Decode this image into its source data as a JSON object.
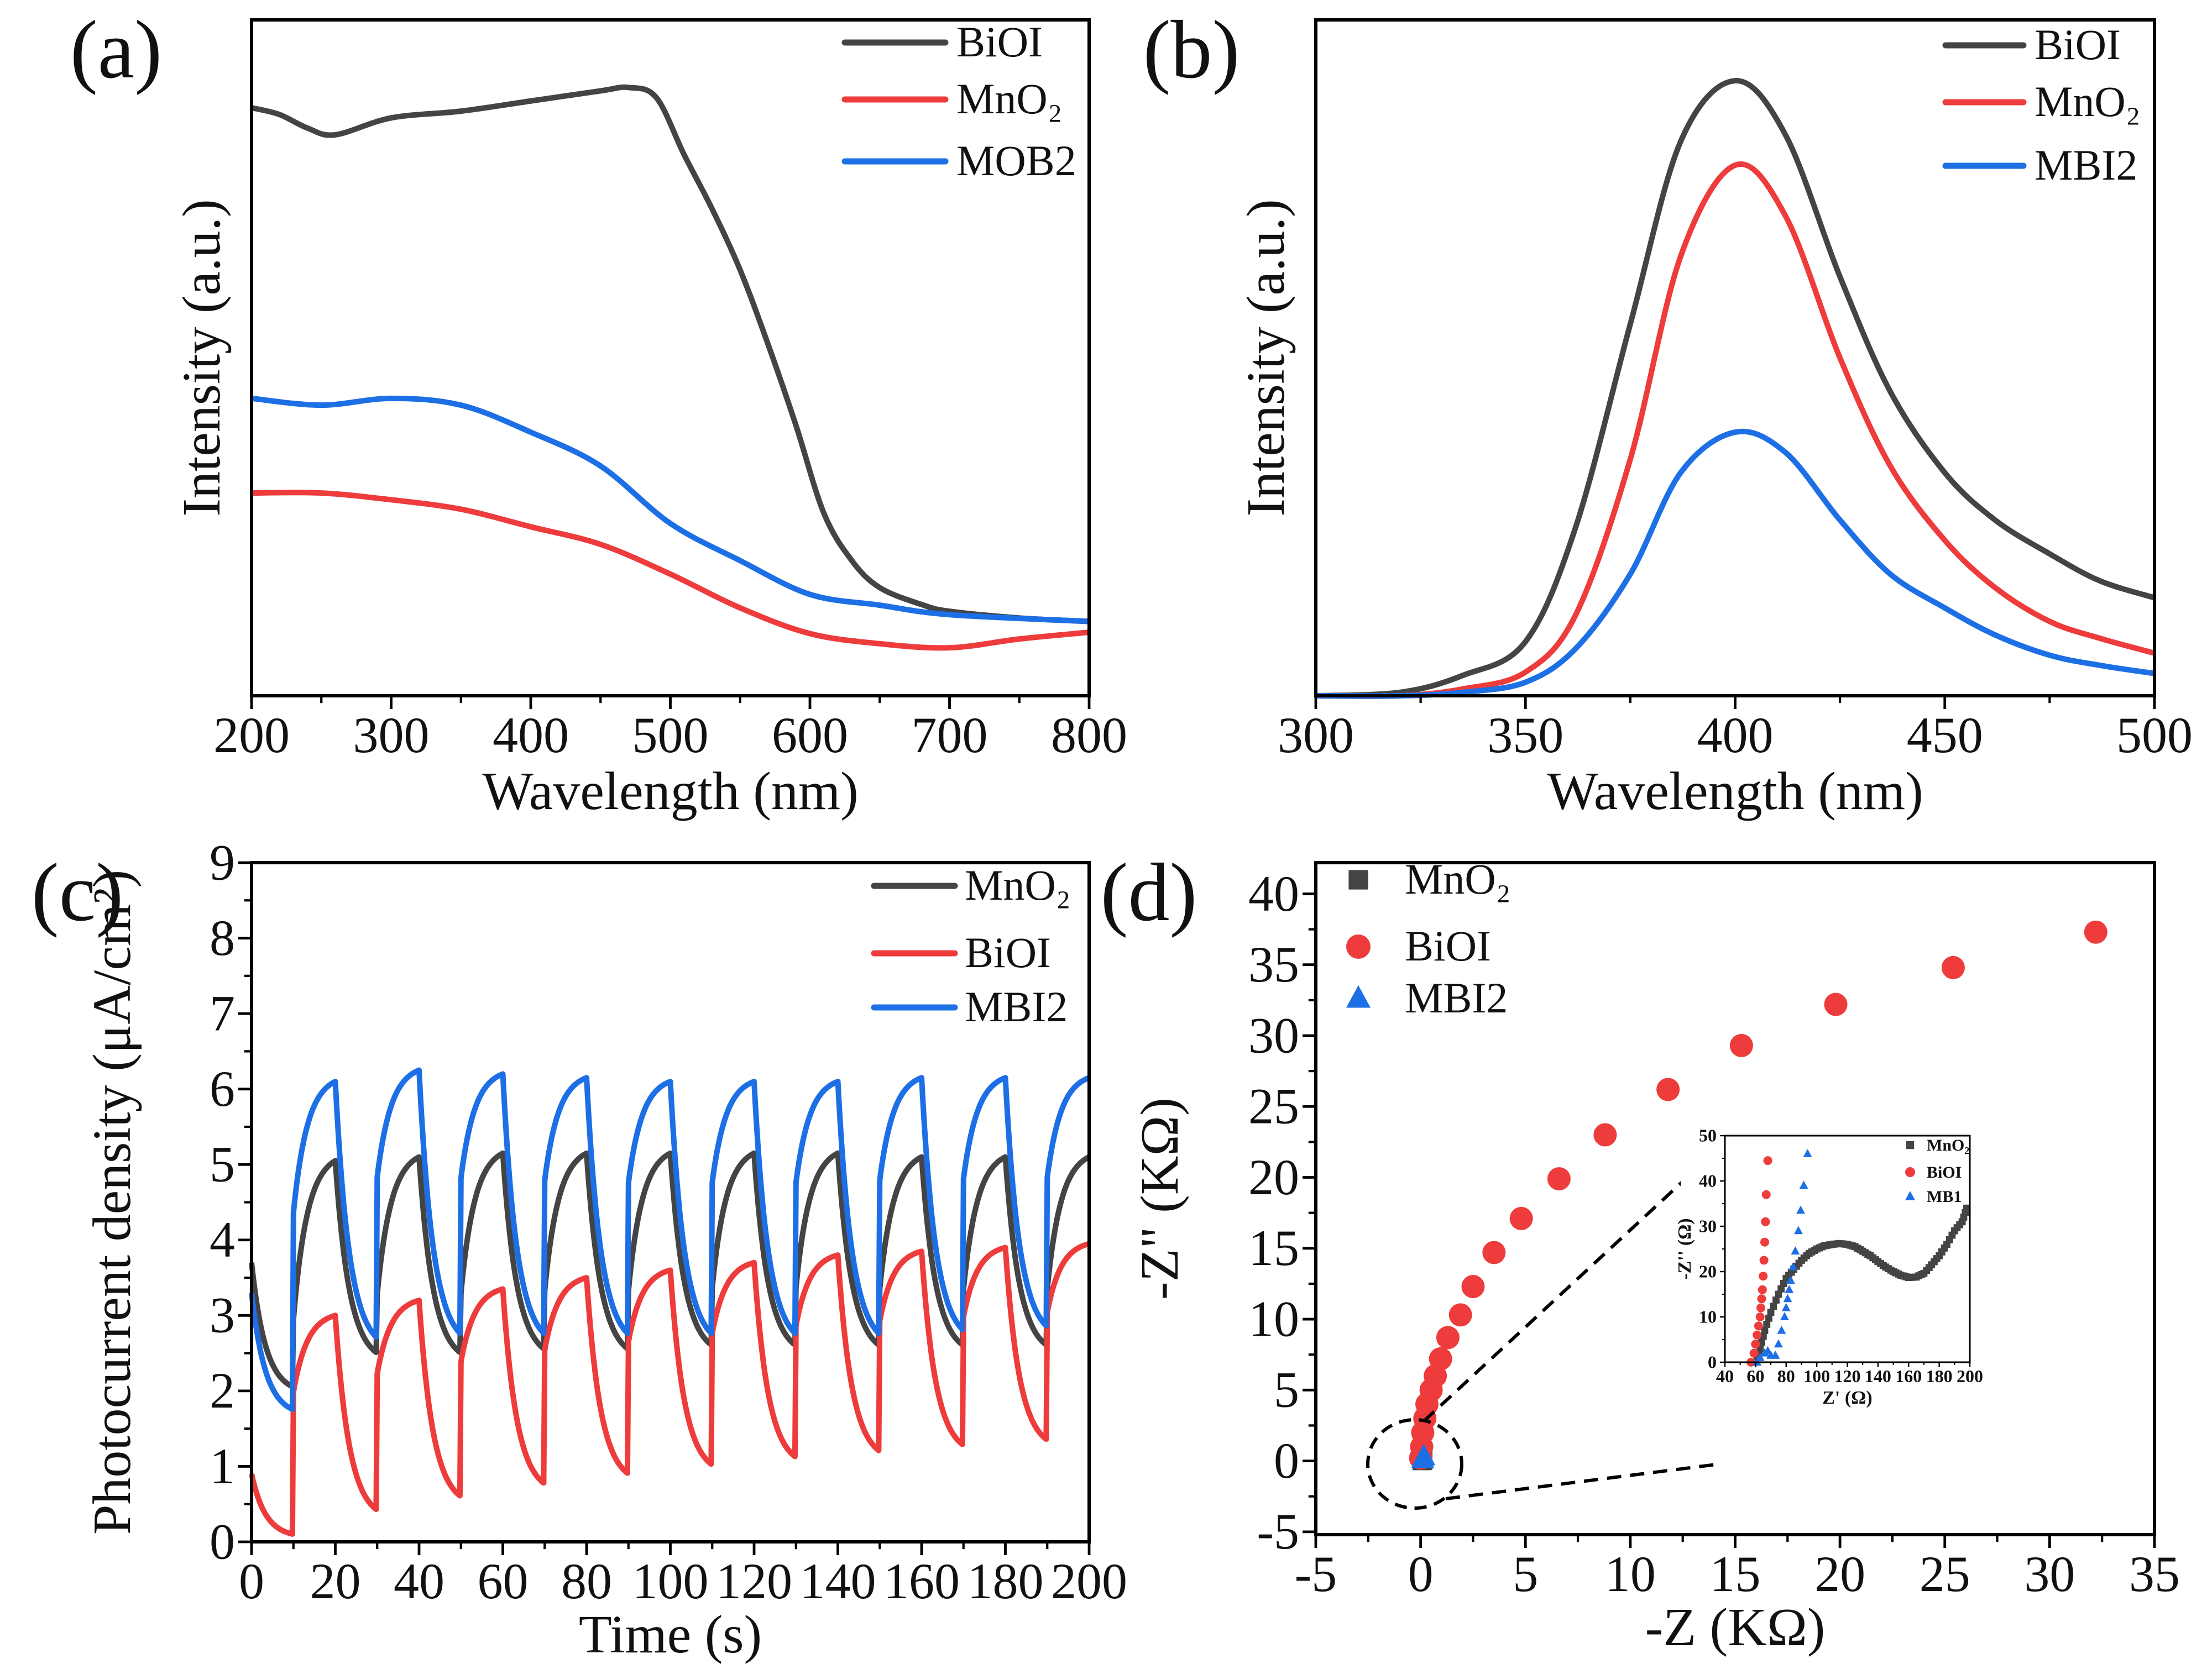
{
  "chart_data": [
    {
      "id": "a",
      "type": "line",
      "panel_label": "(a)",
      "xlabel": "Wavelength (nm)",
      "ylabel": "Intensity (a.u.)",
      "xlim": [
        200,
        800
      ],
      "ylim": [
        0,
        1
      ],
      "x_ticks": [
        200,
        300,
        400,
        500,
        600,
        700,
        800
      ],
      "y_ticks": [],
      "legend_position": "top-right",
      "series": [
        {
          "name": "BiOI",
          "color": "#444444",
          "x": [
            200,
            220,
            240,
            260,
            300,
            350,
            400,
            450,
            470,
            490,
            510,
            530,
            550,
            570,
            590,
            610,
            630,
            650,
            680,
            700,
            750,
            800
          ],
          "y": [
            0.87,
            0.86,
            0.84,
            0.83,
            0.855,
            0.865,
            0.88,
            0.895,
            0.9,
            0.885,
            0.8,
            0.72,
            0.63,
            0.52,
            0.4,
            0.27,
            0.2,
            0.16,
            0.135,
            0.125,
            0.115,
            0.11
          ]
        },
        {
          "name": "MnO₂",
          "color": "#ee3b3b",
          "x": [
            200,
            250,
            300,
            350,
            400,
            450,
            500,
            550,
            600,
            650,
            700,
            750,
            800
          ],
          "y": [
            0.3,
            0.3,
            0.29,
            0.276,
            0.25,
            0.224,
            0.18,
            0.13,
            0.092,
            0.077,
            0.071,
            0.084,
            0.094
          ]
        },
        {
          "name": "MOB2",
          "color": "#1d6fe5",
          "x": [
            200,
            250,
            300,
            350,
            400,
            450,
            500,
            550,
            600,
            650,
            700,
            800
          ],
          "y": [
            0.44,
            0.43,
            0.44,
            0.43,
            0.39,
            0.34,
            0.255,
            0.2,
            0.15,
            0.134,
            0.12,
            0.11
          ]
        }
      ]
    },
    {
      "id": "b",
      "type": "line",
      "panel_label": "(b)",
      "xlabel": "Wavelength (nm)",
      "ylabel": "Intensity (a.u.)",
      "xlim": [
        300,
        500
      ],
      "ylim": [
        0,
        1
      ],
      "x_ticks": [
        300,
        350,
        400,
        450,
        500
      ],
      "y_ticks": [],
      "legend_position": "top-right",
      "series": [
        {
          "name": "BiOI",
          "color": "#444444",
          "x": [
            300,
            320,
            335,
            350,
            362,
            375,
            387,
            400,
            412,
            425,
            437,
            450,
            462,
            475,
            487,
            500
          ],
          "y": [
            0,
            0.005,
            0.03,
            0.08,
            0.25,
            0.55,
            0.82,
            0.91,
            0.83,
            0.62,
            0.45,
            0.33,
            0.26,
            0.21,
            0.17,
            0.145
          ]
        },
        {
          "name": "MnO₂",
          "color": "#ee3b3b",
          "x": [
            300,
            320,
            335,
            350,
            362,
            375,
            387,
            400,
            412,
            425,
            437,
            450,
            462,
            475,
            487,
            500
          ],
          "y": [
            0,
            0,
            0.01,
            0.035,
            0.12,
            0.35,
            0.65,
            0.785,
            0.71,
            0.5,
            0.34,
            0.23,
            0.16,
            0.11,
            0.085,
            0.063
          ]
        },
        {
          "name": "MBI2",
          "color": "#1d6fe5",
          "x": [
            300,
            320,
            335,
            350,
            362,
            375,
            387,
            400,
            412,
            425,
            437,
            450,
            462,
            475,
            487,
            500
          ],
          "y": [
            0,
            0,
            0.005,
            0.02,
            0.07,
            0.18,
            0.33,
            0.39,
            0.36,
            0.26,
            0.18,
            0.13,
            0.09,
            0.06,
            0.045,
            0.033
          ]
        }
      ]
    },
    {
      "id": "c",
      "type": "line",
      "panel_label": "(c)",
      "xlabel": "Time (s)",
      "ylabel": "Photocurrent density (μA/cm²)",
      "xlim": [
        0,
        200
      ],
      "ylim": [
        0,
        9
      ],
      "x_ticks": [
        0,
        20,
        40,
        60,
        80,
        100,
        120,
        140,
        160,
        180,
        200
      ],
      "y_ticks": [
        0,
        1,
        2,
        3,
        4,
        5,
        6,
        7,
        8,
        9
      ],
      "legend_position": "top-right",
      "light_on_start_times": [
        10,
        30,
        50,
        70,
        90,
        110,
        130,
        150,
        170,
        190
      ],
      "light_on_duration": 10,
      "series": [
        {
          "name": "MnO₂",
          "color": "#444444",
          "start": 3.7,
          "troughs": [
            2.05,
            2.5,
            2.5,
            2.55,
            2.55,
            2.6,
            2.6,
            2.6,
            2.6,
            2.6
          ],
          "peaks": [
            5.05,
            5.1,
            5.15,
            5.15,
            5.15,
            5.15,
            5.15,
            5.1,
            5.1,
            5.1
          ]
        },
        {
          "name": "BiOI",
          "color": "#ee3b3b",
          "start": 0.9,
          "troughs": [
            0.1,
            0.42,
            0.6,
            0.77,
            0.9,
            1.02,
            1.12,
            1.2,
            1.28,
            1.35
          ],
          "peaks": [
            3.0,
            3.2,
            3.35,
            3.5,
            3.6,
            3.7,
            3.8,
            3.85,
            3.9,
            3.95
          ]
        },
        {
          "name": "MBI2",
          "color": "#1d6fe5",
          "start": 3.3,
          "troughs": [
            1.75,
            2.7,
            2.75,
            2.75,
            2.75,
            2.75,
            2.75,
            2.75,
            2.8,
            2.85
          ],
          "peaks": [
            6.1,
            6.25,
            6.2,
            6.15,
            6.1,
            6.1,
            6.1,
            6.15,
            6.15,
            6.15
          ]
        }
      ]
    },
    {
      "id": "d",
      "type": "scatter",
      "panel_label": "(d)",
      "xlabel": "-Z (KΩ)",
      "ylabel": "-Z\" (KΩ)",
      "xlim": [
        -5,
        35
      ],
      "ylim": [
        -5.2,
        42.2
      ],
      "x_ticks": [
        -5,
        0,
        5,
        10,
        15,
        20,
        25,
        30,
        35
      ],
      "y_ticks": [
        -5,
        0,
        5,
        10,
        15,
        20,
        25,
        30,
        35,
        40
      ],
      "legend_position": "top-left",
      "series": [
        {
          "name": "MnO₂",
          "color": "#444444",
          "marker": "square",
          "x": [
            0.06,
            0.08,
            0.1,
            0.12
          ],
          "y": [
            0,
            0.02,
            0.03,
            0.03
          ]
        },
        {
          "name": "BiOI",
          "color": "#ee3b3b",
          "marker": "circle",
          "x": [
            0,
            0.05,
            0.1,
            0.2,
            0.3,
            0.5,
            0.7,
            0.95,
            1.3,
            1.9,
            2.5,
            3.5,
            4.8,
            6.6,
            8.8,
            11.8,
            15.3,
            19.8,
            25.4,
            32.2
          ],
          "y": [
            0.2,
            1,
            2,
            3,
            4,
            5,
            6,
            7.2,
            8.7,
            10.3,
            12.3,
            14.7,
            17.1,
            19.9,
            23,
            26.2,
            29.3,
            32.2,
            34.8,
            37.3
          ]
        },
        {
          "name": "MBI2",
          "color": "#1d6fe5",
          "marker": "triangle",
          "x": [
            0.1,
            0.15
          ],
          "y": [
            0.1,
            0.3
          ]
        }
      ]
    },
    {
      "id": "d-inset",
      "type": "scatter",
      "panel_label": "",
      "xlabel": "Z' (Ω)",
      "ylabel": "-Z'' (Ω)",
      "xlim": [
        40,
        200
      ],
      "ylim": [
        0,
        50
      ],
      "x_ticks": [
        40,
        60,
        80,
        100,
        120,
        140,
        160,
        180,
        200
      ],
      "y_ticks": [
        0,
        10,
        20,
        30,
        40,
        50
      ],
      "legend_position": "top-right",
      "series": [
        {
          "name": "MnO₂",
          "color": "#444444",
          "marker": "square",
          "x": [
            60,
            63,
            66,
            70,
            75,
            80,
            85,
            90,
            95,
            100,
            105,
            110,
            115,
            120,
            125,
            130,
            135,
            140,
            145,
            150,
            155,
            160,
            165,
            170,
            175,
            180,
            185,
            190,
            195,
            198
          ],
          "y": [
            0,
            3,
            7,
            11,
            15,
            18.5,
            20.5,
            22.5,
            24,
            25,
            25.7,
            26,
            26.2,
            26,
            25.5,
            24.5,
            23.5,
            22.2,
            21,
            20,
            19.2,
            18.7,
            18.8,
            19.6,
            21.5,
            23.5,
            26,
            29,
            31,
            34
          ]
        },
        {
          "name": "BiOI",
          "color": "#ee3b3b",
          "marker": "circle",
          "x": [
            57,
            59,
            60,
            61,
            62,
            63,
            63.5,
            64,
            64.5,
            65,
            65.5,
            66,
            66.5,
            67,
            68
          ],
          "y": [
            0,
            2,
            4,
            6,
            8,
            10,
            12,
            14,
            16,
            19,
            22.5,
            26.5,
            31,
            37,
            44.5
          ]
        },
        {
          "name": "MB1",
          "color": "#1d6fe5",
          "marker": "triangle",
          "x": [
            61,
            63,
            66,
            68,
            70,
            73,
            75,
            77,
            79,
            80,
            81,
            82,
            83,
            84.5,
            86,
            88,
            89.5,
            91.5,
            94
          ],
          "y": [
            0,
            1,
            2,
            2.5,
            1.5,
            1.5,
            4,
            7,
            10,
            12,
            14,
            16,
            18,
            21,
            24.5,
            29,
            33.5,
            39,
            46
          ]
        }
      ]
    }
  ]
}
